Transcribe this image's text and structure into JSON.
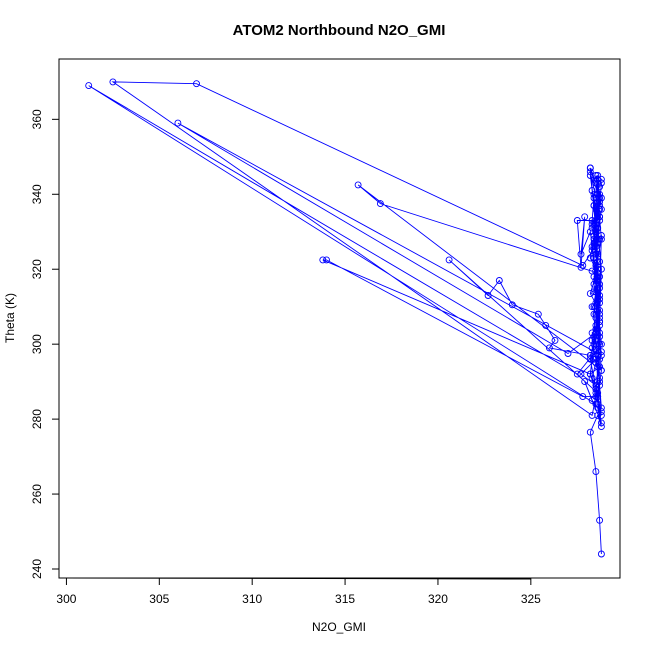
{
  "chart_data": {
    "type": "line",
    "title": "ATOM2 Northbound N2O_GMI",
    "xlabel": "N2O_GMI",
    "ylabel": "Theta (K)",
    "xlim": [
      299.6,
      329.8
    ],
    "ylim": [
      237.6,
      376.1
    ],
    "xticks": [
      300,
      305,
      310,
      315,
      320,
      325
    ],
    "yticks": [
      240,
      260,
      280,
      300,
      320,
      340,
      360
    ],
    "grid": false,
    "legend": "none",
    "series_color": "#0000ff",
    "marker": "open-circle",
    "series": [
      {
        "points": [
          [
            328.8,
            244
          ],
          [
            328.7,
            253
          ],
          [
            328.5,
            266
          ],
          [
            328.2,
            276.5
          ],
          [
            328.6,
            281
          ],
          [
            328.8,
            278
          ],
          [
            328.6,
            283
          ],
          [
            328.3,
            285
          ],
          [
            327.9,
            290
          ],
          [
            328.8,
            279
          ],
          [
            328.5,
            287
          ],
          [
            328.2,
            292
          ],
          [
            328.7,
            294
          ],
          [
            328.4,
            296
          ],
          [
            328.2,
            297
          ],
          [
            328.8,
            298
          ],
          [
            328.5,
            300
          ],
          [
            328.3,
            303
          ],
          [
            328.7,
            305
          ],
          [
            328.5,
            308
          ],
          [
            328.3,
            310
          ],
          [
            328.7,
            312
          ],
          [
            328.4,
            314
          ],
          [
            328.6,
            317
          ],
          [
            328.3,
            319.5
          ],
          [
            328.7,
            322
          ],
          [
            328.5,
            324
          ],
          [
            328.4,
            326
          ],
          [
            328.7,
            328
          ],
          [
            328.5,
            330
          ],
          [
            328.3,
            332
          ],
          [
            328.7,
            334
          ],
          [
            328.5,
            336
          ],
          [
            328.6,
            338
          ],
          [
            328.4,
            340
          ],
          [
            328.7,
            342
          ],
          [
            328.8,
            344
          ],
          [
            328.6,
            345
          ],
          [
            328.5,
            343
          ],
          [
            328.2,
            347
          ],
          [
            328.3,
            341
          ],
          [
            328.6,
            335
          ],
          [
            328.4,
            329
          ],
          [
            328.2,
            323
          ],
          [
            328.7,
            318
          ],
          [
            328.5,
            311
          ],
          [
            328.6,
            304
          ],
          [
            328.3,
            299
          ],
          [
            328.8,
            293
          ],
          [
            328.6,
            286
          ],
          [
            328.8,
            282
          ],
          [
            328.5,
            288
          ],
          [
            328.7,
            296
          ],
          [
            328.4,
            302
          ],
          [
            328.7,
            309
          ],
          [
            328.2,
            313.5
          ],
          [
            328.6,
            320
          ],
          [
            328.4,
            327
          ],
          [
            328.7,
            333
          ],
          [
            328.5,
            339
          ],
          [
            328.2,
            346
          ],
          [
            328.4,
            337
          ],
          [
            328.6,
            331
          ],
          [
            328.3,
            325
          ],
          [
            328.7,
            316
          ],
          [
            328.5,
            307
          ],
          [
            328.3,
            301
          ],
          [
            328.7,
            291
          ],
          [
            328.5,
            284
          ],
          [
            301.2,
            369
          ],
          [
            327.5,
            292
          ],
          [
            328.8,
            300
          ],
          [
            328.3,
            326
          ],
          [
            328.7,
            336
          ],
          [
            328.5,
            321
          ],
          [
            328.6,
            312
          ],
          [
            328.7,
            289
          ],
          [
            328.8,
            283
          ],
          [
            328.6,
            290
          ],
          [
            328.4,
            308
          ],
          [
            328.6,
            318
          ],
          [
            328.5,
            330
          ],
          [
            328.7,
            340
          ],
          [
            328.2,
            345
          ],
          [
            328.4,
            337
          ],
          [
            328.6,
            328
          ],
          [
            328.5,
            317
          ],
          [
            328.7,
            306
          ],
          [
            328.6,
            294
          ],
          [
            328.5,
            286
          ],
          [
            328.3,
            281
          ],
          [
            302.5,
            370
          ],
          [
            307,
            369.5
          ],
          [
            327.8,
            321
          ],
          [
            328.6,
            327
          ],
          [
            328.4,
            332
          ],
          [
            328.7,
            338
          ],
          [
            328.5,
            343
          ],
          [
            328.8,
            339
          ],
          [
            328.5,
            333
          ],
          [
            327.5,
            333
          ],
          [
            327.7,
            320.5
          ],
          [
            327.9,
            334
          ],
          [
            327.7,
            324
          ],
          [
            328.2,
            330
          ],
          [
            328.4,
            323
          ],
          [
            328.6,
            315
          ],
          [
            328.7,
            302
          ],
          [
            328.8,
            297
          ],
          [
            306,
            359
          ],
          [
            327,
            297.5
          ],
          [
            328.5,
            303
          ],
          [
            328.7,
            308
          ],
          [
            328.5,
            314
          ],
          [
            328.6,
            322
          ],
          [
            328.4,
            328
          ],
          [
            328.8,
            329
          ],
          [
            328.7,
            313
          ],
          [
            328.5,
            305
          ],
          [
            328.7,
            300
          ],
          [
            328.8,
            293
          ],
          [
            315.7,
            342.5
          ],
          [
            316.9,
            337.5
          ],
          [
            328.6,
            319
          ],
          [
            328.5,
            326
          ],
          [
            328.7,
            334
          ],
          [
            328.6,
            344
          ],
          [
            328.8,
            336
          ],
          [
            328.5,
            324
          ],
          [
            328.7,
            315
          ],
          [
            328.6,
            309
          ],
          [
            328.4,
            300
          ],
          [
            328.2,
            292
          ],
          [
            313.8,
            322.5
          ],
          [
            314,
            322.5
          ],
          [
            327.8,
            286
          ],
          [
            328.6,
            286
          ],
          [
            328.5,
            289
          ],
          [
            327.7,
            292
          ],
          [
            328.5,
            296
          ],
          [
            328.7,
            306
          ],
          [
            328.8,
            320
          ],
          [
            328.6,
            331
          ],
          [
            328.4,
            339
          ],
          [
            328.3,
            333
          ],
          [
            328.5,
            327
          ],
          [
            328.6,
            319
          ],
          [
            328.4,
            310
          ],
          [
            328.7,
            303
          ],
          [
            328.6,
            297
          ],
          [
            328.3,
            291
          ],
          [
            328.6,
            287
          ],
          [
            320.6,
            322.5
          ],
          [
            322.7,
            313
          ],
          [
            323.3,
            317
          ],
          [
            324,
            310.5
          ],
          [
            325.4,
            308
          ],
          [
            325.8,
            305
          ],
          [
            326.3,
            301
          ],
          [
            326,
            299
          ],
          [
            328.2,
            297
          ],
          [
            328.5,
            301
          ],
          [
            328.7,
            307
          ],
          [
            328.4,
            316
          ],
          [
            328.6,
            324
          ],
          [
            328.3,
            331
          ],
          [
            328.7,
            339
          ],
          [
            328.5,
            345
          ],
          [
            328.8,
            343
          ],
          [
            328.7,
            337
          ],
          [
            328.5,
            330
          ],
          [
            328.2,
            347
          ],
          [
            328.6,
            340
          ],
          [
            328.8,
            328
          ],
          [
            328.4,
            318
          ],
          [
            328.7,
            311
          ],
          [
            328.5,
            304
          ],
          [
            328.2,
            296
          ],
          [
            328.5,
            288
          ],
          [
            328.8,
            281
          ],
          [
            328.6,
            284
          ],
          [
            328.7,
            290
          ],
          [
            328.5,
            295
          ]
        ]
      }
    ]
  }
}
